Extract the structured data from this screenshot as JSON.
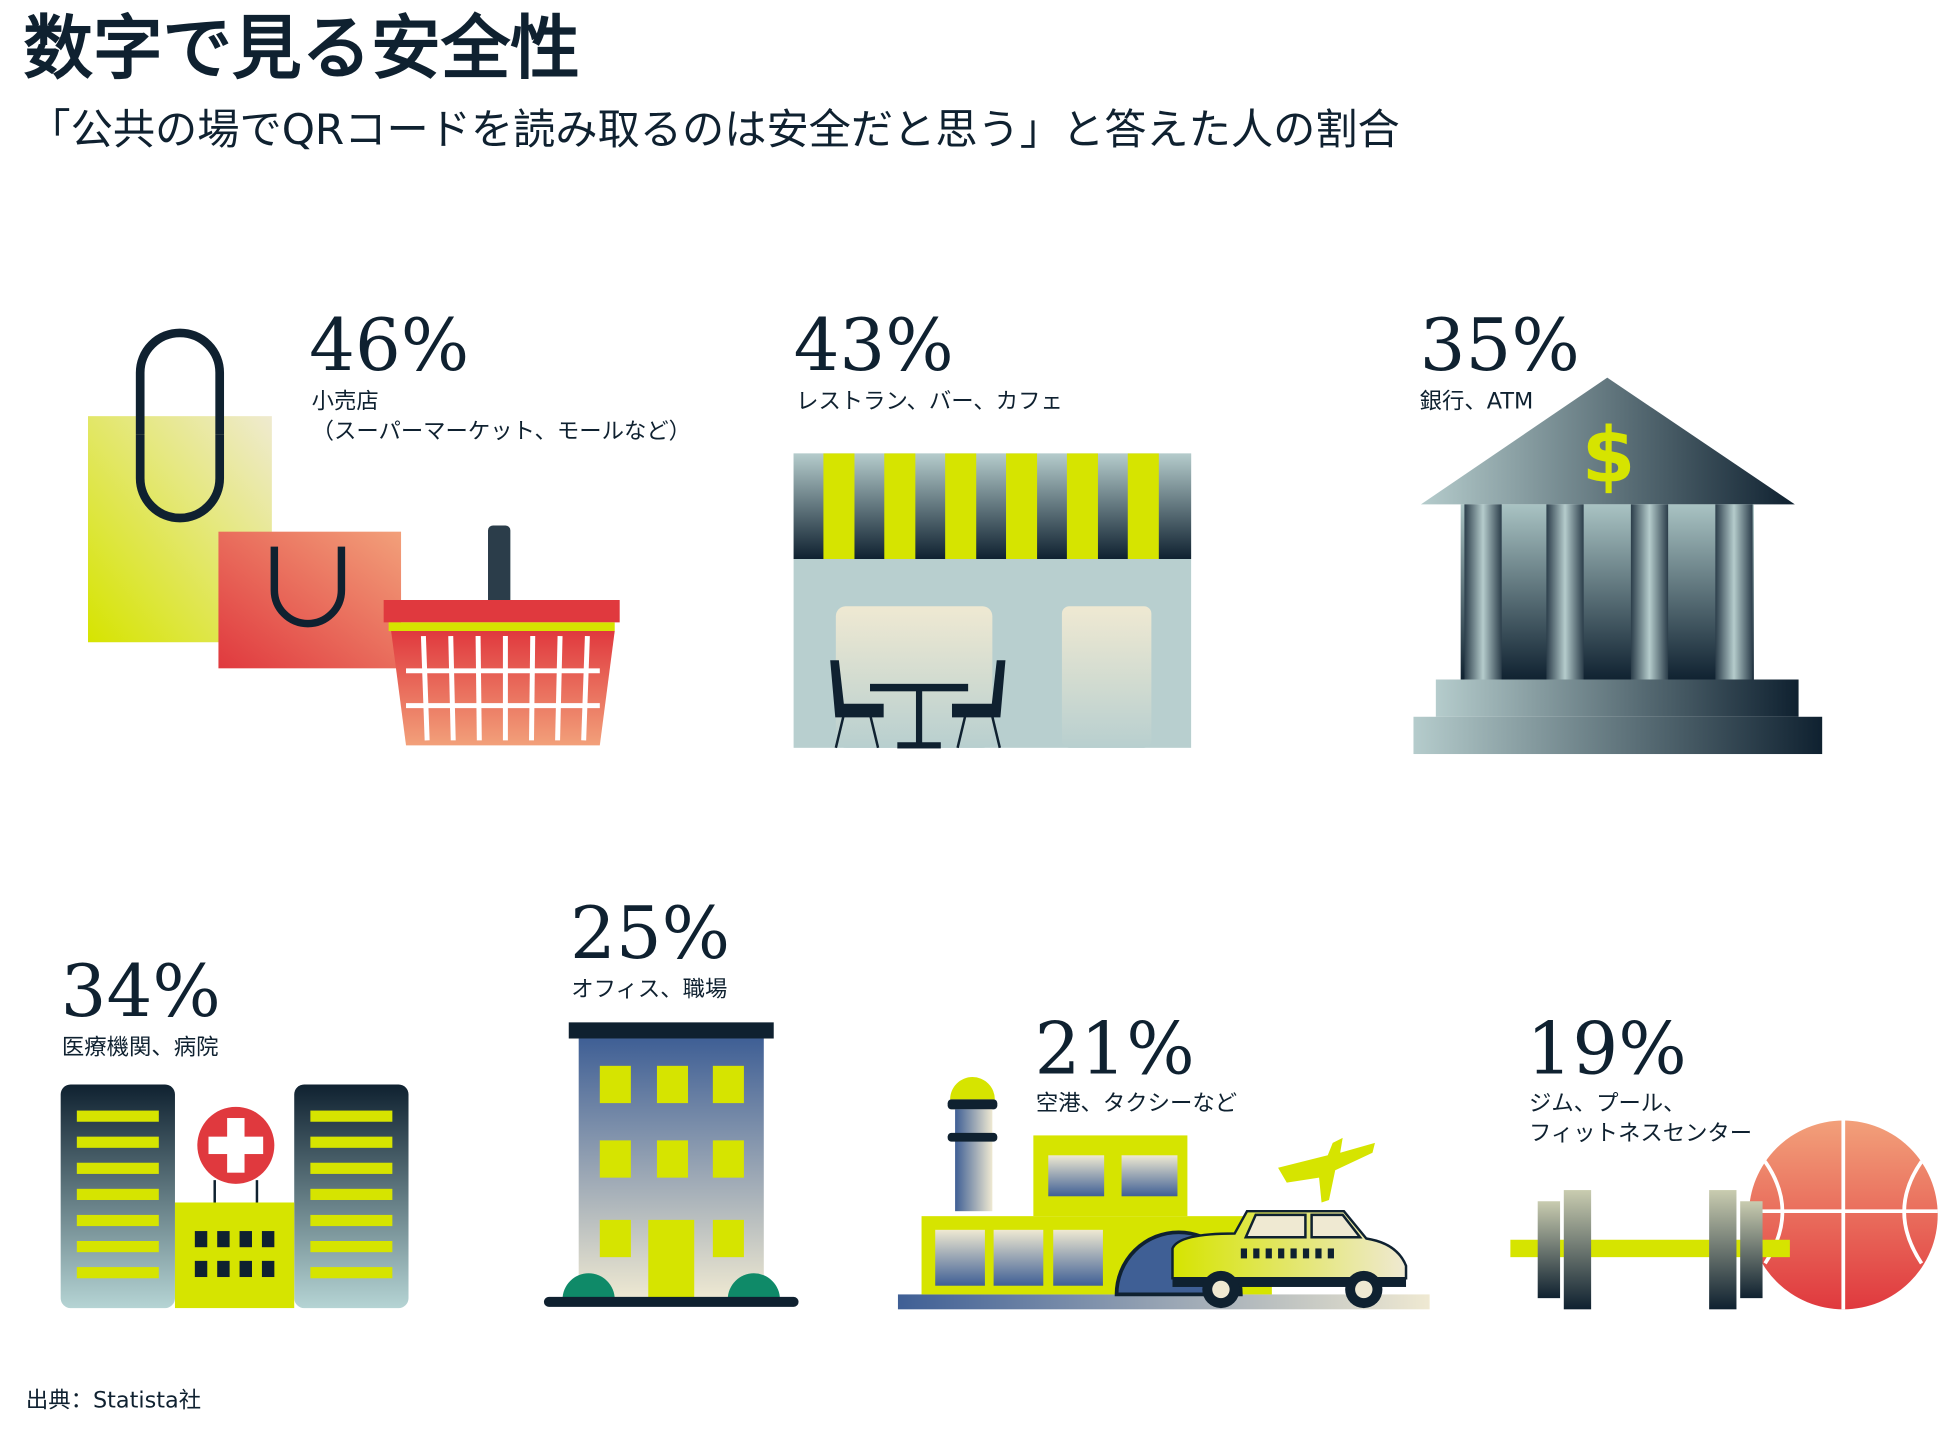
{
  "title": "数字で見る安全性",
  "subtitle": "「公共の場でQRコードを読み取るのは安全だと思う」と答えた人の割合",
  "source": "出典：Statista社",
  "colors": {
    "text": "#0f2130",
    "lime": "#d6e400",
    "red": "#e0393e",
    "slate": "#3f5f95"
  },
  "chart_data": {
    "type": "table",
    "title": "数字で見る安全性",
    "subtitle": "「公共の場でQRコードを読み取るのは安全だと思う」と答えた人の割合",
    "categories": [
      {
        "value_label": "46%",
        "value": 46,
        "label": [
          "小売店",
          "（スーパーマーケット、モールなど）"
        ],
        "icon": "shopping-bags-basket-icon"
      },
      {
        "value_label": "43%",
        "value": 43,
        "label": [
          "レストラン、バー、カフェ"
        ],
        "icon": "cafe-storefront-icon"
      },
      {
        "value_label": "35%",
        "value": 35,
        "label": [
          "銀行、ATM"
        ],
        "icon": "bank-icon"
      },
      {
        "value_label": "34%",
        "value": 34,
        "label": [
          "医療機関、病院"
        ],
        "icon": "hospital-icon"
      },
      {
        "value_label": "25%",
        "value": 25,
        "label": [
          "オフィス、職場"
        ],
        "icon": "office-building-icon"
      },
      {
        "value_label": "21%",
        "value": 21,
        "label": [
          "空港、タクシーなど"
        ],
        "icon": "airport-taxi-icon"
      },
      {
        "value_label": "19%",
        "value": 19,
        "label": [
          "ジム、プール、",
          "フィットネスセンター"
        ],
        "icon": "dumbbell-ball-icon"
      }
    ]
  }
}
